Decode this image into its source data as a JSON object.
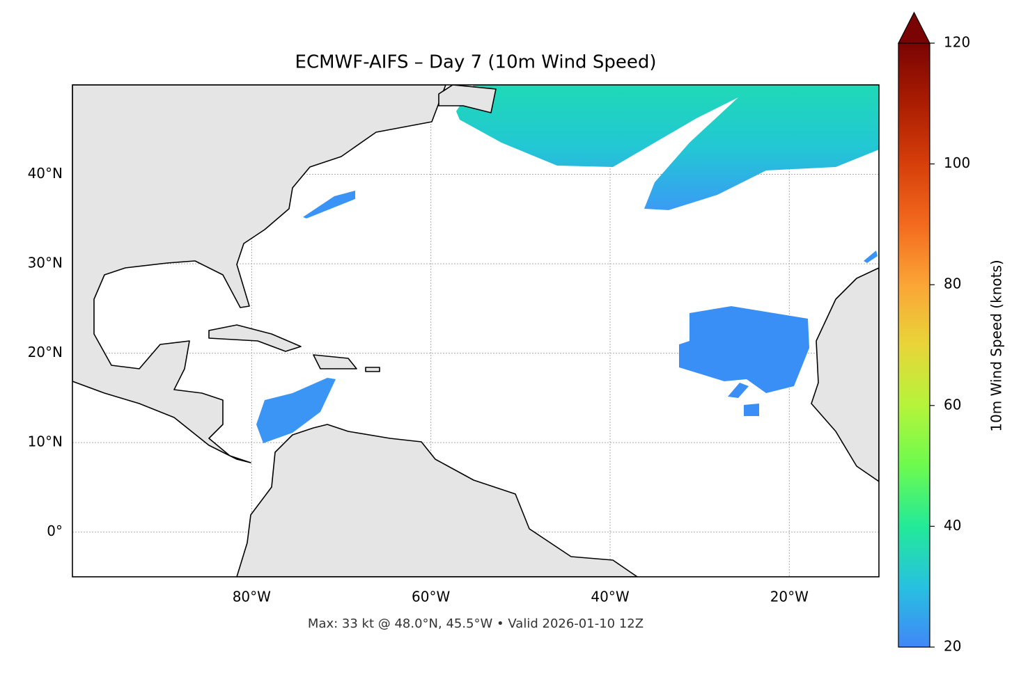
{
  "chart_data": {
    "type": "map",
    "title": "ECMWF-AIFS – Day 7 (10m Wind Speed)",
    "footer": "Max: 33 kt @ 48.0°N, 45.5°W • Valid 2026-01-10 12Z",
    "xlim": [
      -100,
      -10
    ],
    "ylim": [
      -5,
      50
    ],
    "xticks": [
      {
        "value": -80,
        "label": "80°W"
      },
      {
        "value": -60,
        "label": "60°W"
      },
      {
        "value": -40,
        "label": "40°W"
      },
      {
        "value": -20,
        "label": "20°W"
      }
    ],
    "yticks": [
      {
        "value": 0,
        "label": "0°"
      },
      {
        "value": 10,
        "label": "10°N"
      },
      {
        "value": 20,
        "label": "20°N"
      },
      {
        "value": 30,
        "label": "30°N"
      },
      {
        "value": 40,
        "label": "40°N"
      }
    ],
    "grid": true,
    "colorbar": {
      "label": "10m Wind Speed (knots)",
      "lim": [
        20,
        120
      ],
      "ticks": [
        20,
        40,
        60,
        80,
        100,
        120
      ],
      "extend": "max",
      "colors": [
        "#4087f7",
        "#27c1e0",
        "#22ea98",
        "#6cfb4f",
        "#b5f43a",
        "#e8d539",
        "#fba536",
        "#f36a1e",
        "#d63f0a",
        "#ab1d02",
        "#7a0403"
      ]
    }
  }
}
